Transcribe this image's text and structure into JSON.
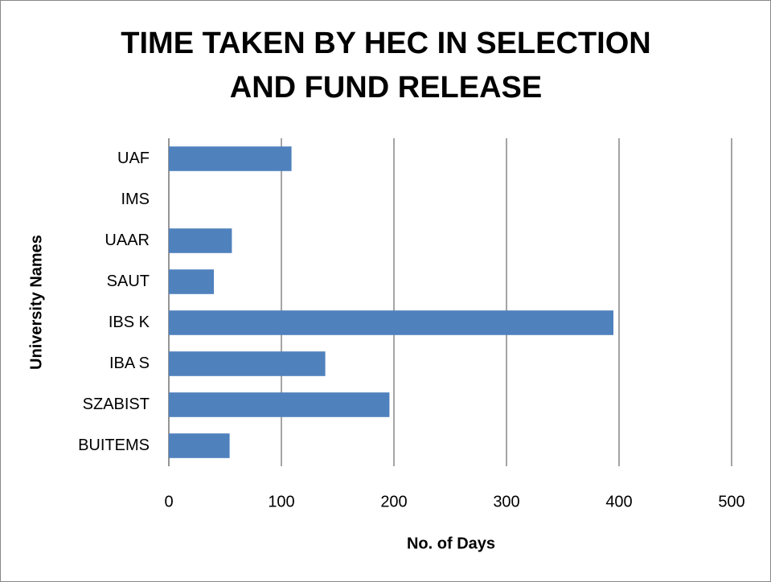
{
  "chart_data": {
    "type": "bar",
    "orientation": "horizontal",
    "title": [
      "TIME TAKEN BY HEC IN SELECTION",
      "AND FUND RELEASE"
    ],
    "xlabel": "No. of Days",
    "ylabel": "University  Names",
    "categories": [
      "UAF",
      "IMS",
      "UAAR",
      "SAUT",
      "IBS K",
      "IBA S",
      "SZABIST",
      "BUITEMS"
    ],
    "values": [
      109,
      0,
      56,
      40,
      395,
      139,
      196,
      54
    ],
    "color": "#4f81bd",
    "xlim": [
      0,
      500
    ],
    "xticks": [
      0,
      100,
      200,
      300,
      400,
      500
    ],
    "grid": true
  }
}
